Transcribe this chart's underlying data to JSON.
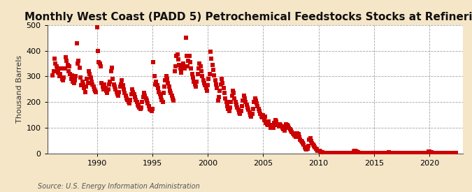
{
  "title": "Monthly West Coast (PADD 5) Petrochemical Feedstocks Stocks at Refineries",
  "ylabel": "Thousand Barrels",
  "source": "Source: U.S. Energy Information Administration",
  "background_color": "#f5e6c8",
  "plot_background_color": "#ffffff",
  "marker_color": "#cc0000",
  "marker": "s",
  "marker_size": 4,
  "xmin": 1985.5,
  "xmax": 2023.0,
  "ymin": 0,
  "ymax": 500,
  "yticks": [
    0,
    100,
    200,
    300,
    400,
    500
  ],
  "xticks": [
    1990,
    1995,
    2000,
    2005,
    2010,
    2015,
    2020
  ],
  "title_fontsize": 11,
  "label_fontsize": 8,
  "tick_fontsize": 8,
  "source_fontsize": 7,
  "data": [
    [
      1986.0,
      305
    ],
    [
      1986.083,
      320
    ],
    [
      1986.167,
      370
    ],
    [
      1986.25,
      350
    ],
    [
      1986.333,
      340
    ],
    [
      1986.417,
      325
    ],
    [
      1986.5,
      315
    ],
    [
      1986.583,
      300
    ],
    [
      1986.667,
      310
    ],
    [
      1986.75,
      330
    ],
    [
      1986.833,
      290
    ],
    [
      1986.917,
      285
    ],
    [
      1987.0,
      295
    ],
    [
      1987.083,
      330
    ],
    [
      1987.167,
      375
    ],
    [
      1987.25,
      360
    ],
    [
      1987.333,
      345
    ],
    [
      1987.417,
      320
    ],
    [
      1987.5,
      340
    ],
    [
      1987.583,
      310
    ],
    [
      1987.667,
      290
    ],
    [
      1987.75,
      305
    ],
    [
      1987.833,
      280
    ],
    [
      1987.917,
      275
    ],
    [
      1988.0,
      285
    ],
    [
      1988.083,
      300
    ],
    [
      1988.167,
      430
    ],
    [
      1988.25,
      350
    ],
    [
      1988.333,
      360
    ],
    [
      1988.417,
      335
    ],
    [
      1988.5,
      295
    ],
    [
      1988.583,
      265
    ],
    [
      1988.667,
      280
    ],
    [
      1988.75,
      270
    ],
    [
      1988.833,
      255
    ],
    [
      1988.917,
      240
    ],
    [
      1989.0,
      260
    ],
    [
      1989.083,
      290
    ],
    [
      1989.167,
      275
    ],
    [
      1989.25,
      320
    ],
    [
      1989.333,
      310
    ],
    [
      1989.417,
      295
    ],
    [
      1989.5,
      280
    ],
    [
      1989.583,
      270
    ],
    [
      1989.667,
      260
    ],
    [
      1989.75,
      250
    ],
    [
      1989.833,
      245
    ],
    [
      1989.917,
      240
    ],
    [
      1990.0,
      490
    ],
    [
      1990.083,
      400
    ],
    [
      1990.167,
      355
    ],
    [
      1990.25,
      350
    ],
    [
      1990.333,
      340
    ],
    [
      1990.417,
      275
    ],
    [
      1990.5,
      260
    ],
    [
      1990.583,
      250
    ],
    [
      1990.667,
      270
    ],
    [
      1990.75,
      255
    ],
    [
      1990.833,
      245
    ],
    [
      1990.917,
      235
    ],
    [
      1991.0,
      250
    ],
    [
      1991.083,
      270
    ],
    [
      1991.167,
      280
    ],
    [
      1991.25,
      320
    ],
    [
      1991.333,
      335
    ],
    [
      1991.417,
      290
    ],
    [
      1991.5,
      270
    ],
    [
      1991.583,
      260
    ],
    [
      1991.667,
      250
    ],
    [
      1991.75,
      240
    ],
    [
      1991.833,
      230
    ],
    [
      1991.917,
      225
    ],
    [
      1992.0,
      240
    ],
    [
      1992.083,
      260
    ],
    [
      1992.167,
      270
    ],
    [
      1992.25,
      285
    ],
    [
      1992.333,
      265
    ],
    [
      1992.417,
      250
    ],
    [
      1992.5,
      235
    ],
    [
      1992.583,
      225
    ],
    [
      1992.667,
      215
    ],
    [
      1992.75,
      210
    ],
    [
      1992.833,
      200
    ],
    [
      1992.917,
      195
    ],
    [
      1993.0,
      210
    ],
    [
      1993.083,
      230
    ],
    [
      1993.167,
      250
    ],
    [
      1993.25,
      240
    ],
    [
      1993.333,
      230
    ],
    [
      1993.417,
      220
    ],
    [
      1993.5,
      210
    ],
    [
      1993.583,
      200
    ],
    [
      1993.667,
      190
    ],
    [
      1993.75,
      185
    ],
    [
      1993.833,
      180
    ],
    [
      1993.917,
      175
    ],
    [
      1994.0,
      180
    ],
    [
      1994.083,
      200
    ],
    [
      1994.167,
      220
    ],
    [
      1994.25,
      235
    ],
    [
      1994.333,
      225
    ],
    [
      1994.417,
      215
    ],
    [
      1994.5,
      205
    ],
    [
      1994.583,
      195
    ],
    [
      1994.667,
      185
    ],
    [
      1994.75,
      175
    ],
    [
      1994.833,
      170
    ],
    [
      1994.917,
      165
    ],
    [
      1995.0,
      175
    ],
    [
      1995.083,
      355
    ],
    [
      1995.167,
      300
    ],
    [
      1995.25,
      270
    ],
    [
      1995.333,
      280
    ],
    [
      1995.417,
      265
    ],
    [
      1995.5,
      255
    ],
    [
      1995.583,
      240
    ],
    [
      1995.667,
      230
    ],
    [
      1995.75,
      220
    ],
    [
      1995.833,
      210
    ],
    [
      1995.917,
      200
    ],
    [
      1996.0,
      235
    ],
    [
      1996.083,
      260
    ],
    [
      1996.167,
      285
    ],
    [
      1996.25,
      300
    ],
    [
      1996.333,
      290
    ],
    [
      1996.417,
      275
    ],
    [
      1996.5,
      260
    ],
    [
      1996.583,
      245
    ],
    [
      1996.667,
      235
    ],
    [
      1996.75,
      225
    ],
    [
      1996.833,
      215
    ],
    [
      1996.917,
      205
    ],
    [
      1997.0,
      320
    ],
    [
      1997.083,
      340
    ],
    [
      1997.167,
      380
    ],
    [
      1997.25,
      385
    ],
    [
      1997.333,
      365
    ],
    [
      1997.417,
      345
    ],
    [
      1997.5,
      330
    ],
    [
      1997.583,
      315
    ],
    [
      1997.667,
      345
    ],
    [
      1997.75,
      350
    ],
    [
      1997.833,
      340
    ],
    [
      1997.917,
      330
    ],
    [
      1998.0,
      450
    ],
    [
      1998.083,
      380
    ],
    [
      1998.167,
      340
    ],
    [
      1998.25,
      360
    ],
    [
      1998.333,
      380
    ],
    [
      1998.417,
      355
    ],
    [
      1998.5,
      330
    ],
    [
      1998.583,
      310
    ],
    [
      1998.667,
      295
    ],
    [
      1998.75,
      280
    ],
    [
      1998.833,
      270
    ],
    [
      1998.917,
      260
    ],
    [
      1999.0,
      280
    ],
    [
      1999.083,
      310
    ],
    [
      1999.167,
      330
    ],
    [
      1999.25,
      350
    ],
    [
      1999.333,
      340
    ],
    [
      1999.417,
      320
    ],
    [
      1999.5,
      300
    ],
    [
      1999.583,
      285
    ],
    [
      1999.667,
      275
    ],
    [
      1999.75,
      265
    ],
    [
      1999.833,
      255
    ],
    [
      1999.917,
      245
    ],
    [
      2000.0,
      265
    ],
    [
      2000.083,
      290
    ],
    [
      2000.167,
      310
    ],
    [
      2000.25,
      395
    ],
    [
      2000.333,
      370
    ],
    [
      2000.417,
      345
    ],
    [
      2000.5,
      325
    ],
    [
      2000.583,
      305
    ],
    [
      2000.667,
      285
    ],
    [
      2000.75,
      270
    ],
    [
      2000.833,
      255
    ],
    [
      2000.917,
      205
    ],
    [
      2001.0,
      220
    ],
    [
      2001.083,
      245
    ],
    [
      2001.167,
      270
    ],
    [
      2001.25,
      290
    ],
    [
      2001.333,
      275
    ],
    [
      2001.417,
      255
    ],
    [
      2001.5,
      235
    ],
    [
      2001.583,
      215
    ],
    [
      2001.667,
      200
    ],
    [
      2001.75,
      185
    ],
    [
      2001.833,
      175
    ],
    [
      2001.917,
      165
    ],
    [
      2002.0,
      180
    ],
    [
      2002.083,
      200
    ],
    [
      2002.167,
      225
    ],
    [
      2002.25,
      245
    ],
    [
      2002.333,
      235
    ],
    [
      2002.417,
      215
    ],
    [
      2002.5,
      200
    ],
    [
      2002.583,
      190
    ],
    [
      2002.667,
      180
    ],
    [
      2002.75,
      170
    ],
    [
      2002.833,
      160
    ],
    [
      2002.917,
      155
    ],
    [
      2003.0,
      165
    ],
    [
      2003.083,
      185
    ],
    [
      2003.167,
      205
    ],
    [
      2003.25,
      225
    ],
    [
      2003.333,
      215
    ],
    [
      2003.417,
      200
    ],
    [
      2003.5,
      190
    ],
    [
      2003.583,
      180
    ],
    [
      2003.667,
      170
    ],
    [
      2003.75,
      160
    ],
    [
      2003.833,
      150
    ],
    [
      2003.917,
      145
    ],
    [
      2004.0,
      155
    ],
    [
      2004.083,
      175
    ],
    [
      2004.167,
      200
    ],
    [
      2004.25,
      215
    ],
    [
      2004.333,
      205
    ],
    [
      2004.417,
      195
    ],
    [
      2004.5,
      185
    ],
    [
      2004.583,
      175
    ],
    [
      2004.667,
      165
    ],
    [
      2004.75,
      155
    ],
    [
      2004.833,
      145
    ],
    [
      2004.917,
      140
    ],
    [
      2005.0,
      150
    ],
    [
      2005.083,
      130
    ],
    [
      2005.167,
      145
    ],
    [
      2005.25,
      120
    ],
    [
      2005.333,
      115
    ],
    [
      2005.417,
      110
    ],
    [
      2005.5,
      125
    ],
    [
      2005.583,
      110
    ],
    [
      2005.667,
      100
    ],
    [
      2005.75,
      108
    ],
    [
      2005.833,
      105
    ],
    [
      2005.917,
      100
    ],
    [
      2006.0,
      120
    ],
    [
      2006.083,
      130
    ],
    [
      2006.167,
      125
    ],
    [
      2006.25,
      115
    ],
    [
      2006.333,
      110
    ],
    [
      2006.417,
      105
    ],
    [
      2006.5,
      115
    ],
    [
      2006.583,
      110
    ],
    [
      2006.667,
      105
    ],
    [
      2006.75,
      100
    ],
    [
      2006.833,
      95
    ],
    [
      2006.917,
      90
    ],
    [
      2007.0,
      100
    ],
    [
      2007.083,
      115
    ],
    [
      2007.167,
      110
    ],
    [
      2007.25,
      105
    ],
    [
      2007.333,
      100
    ],
    [
      2007.417,
      95
    ],
    [
      2007.5,
      90
    ],
    [
      2007.583,
      85
    ],
    [
      2007.667,
      80
    ],
    [
      2007.75,
      75
    ],
    [
      2007.833,
      70
    ],
    [
      2007.917,
      65
    ],
    [
      2008.0,
      70
    ],
    [
      2008.083,
      80
    ],
    [
      2008.167,
      75
    ],
    [
      2008.25,
      65
    ],
    [
      2008.333,
      55
    ],
    [
      2008.417,
      50
    ],
    [
      2008.5,
      45
    ],
    [
      2008.583,
      40
    ],
    [
      2008.667,
      35
    ],
    [
      2008.75,
      25
    ],
    [
      2008.833,
      20
    ],
    [
      2008.917,
      15
    ],
    [
      2009.0,
      20
    ],
    [
      2009.083,
      30
    ],
    [
      2009.167,
      55
    ],
    [
      2009.25,
      60
    ],
    [
      2009.333,
      50
    ],
    [
      2009.417,
      40
    ],
    [
      2009.5,
      35
    ],
    [
      2009.583,
      30
    ],
    [
      2009.667,
      25
    ],
    [
      2009.75,
      20
    ],
    [
      2009.833,
      15
    ],
    [
      2009.917,
      10
    ],
    [
      2010.0,
      10
    ],
    [
      2010.083,
      12
    ],
    [
      2010.167,
      8
    ],
    [
      2010.25,
      6
    ],
    [
      2010.333,
      5
    ],
    [
      2010.417,
      4
    ],
    [
      2010.5,
      3
    ],
    [
      2010.583,
      3
    ],
    [
      2010.667,
      2
    ],
    [
      2010.75,
      2
    ],
    [
      2010.833,
      2
    ],
    [
      2010.917,
      2
    ],
    [
      2011.0,
      2
    ],
    [
      2011.083,
      2
    ],
    [
      2011.167,
      2
    ],
    [
      2011.25,
      2
    ],
    [
      2011.333,
      2
    ],
    [
      2011.417,
      2
    ],
    [
      2011.5,
      2
    ],
    [
      2011.583,
      2
    ],
    [
      2011.667,
      2
    ],
    [
      2011.75,
      2
    ],
    [
      2011.833,
      2
    ],
    [
      2011.917,
      2
    ],
    [
      2012.0,
      2
    ],
    [
      2012.083,
      2
    ],
    [
      2012.167,
      2
    ],
    [
      2012.25,
      2
    ],
    [
      2012.333,
      2
    ],
    [
      2012.417,
      2
    ],
    [
      2012.5,
      2
    ],
    [
      2012.583,
      2
    ],
    [
      2012.667,
      2
    ],
    [
      2012.75,
      2
    ],
    [
      2012.833,
      2
    ],
    [
      2012.917,
      2
    ],
    [
      2013.0,
      2
    ],
    [
      2013.083,
      2
    ],
    [
      2013.167,
      8
    ],
    [
      2013.25,
      12
    ],
    [
      2013.333,
      10
    ],
    [
      2013.417,
      8
    ],
    [
      2013.5,
      6
    ],
    [
      2013.583,
      5
    ],
    [
      2013.667,
      4
    ],
    [
      2013.75,
      3
    ],
    [
      2013.833,
      3
    ],
    [
      2013.917,
      2
    ],
    [
      2014.0,
      2
    ],
    [
      2014.083,
      2
    ],
    [
      2014.167,
      2
    ],
    [
      2014.25,
      2
    ],
    [
      2014.333,
      2
    ],
    [
      2014.417,
      2
    ],
    [
      2014.5,
      2
    ],
    [
      2014.583,
      2
    ],
    [
      2014.667,
      2
    ],
    [
      2014.75,
      2
    ],
    [
      2014.833,
      2
    ],
    [
      2014.917,
      2
    ],
    [
      2015.0,
      2
    ],
    [
      2015.083,
      2
    ],
    [
      2015.167,
      2
    ],
    [
      2015.25,
      2
    ],
    [
      2015.333,
      2
    ],
    [
      2015.417,
      2
    ],
    [
      2015.5,
      2
    ],
    [
      2015.583,
      2
    ],
    [
      2015.667,
      2
    ],
    [
      2015.75,
      2
    ],
    [
      2015.833,
      2
    ],
    [
      2015.917,
      2
    ],
    [
      2016.0,
      2
    ],
    [
      2016.083,
      2
    ],
    [
      2016.167,
      3
    ],
    [
      2016.25,
      4
    ],
    [
      2016.333,
      5
    ],
    [
      2016.417,
      3
    ],
    [
      2016.5,
      2
    ],
    [
      2016.583,
      2
    ],
    [
      2016.667,
      2
    ],
    [
      2016.75,
      2
    ],
    [
      2016.833,
      2
    ],
    [
      2016.917,
      2
    ],
    [
      2017.0,
      2
    ],
    [
      2017.083,
      2
    ],
    [
      2017.167,
      2
    ],
    [
      2017.25,
      2
    ],
    [
      2017.333,
      2
    ],
    [
      2017.417,
      2
    ],
    [
      2017.5,
      2
    ],
    [
      2017.583,
      2
    ],
    [
      2017.667,
      2
    ],
    [
      2017.75,
      2
    ],
    [
      2017.833,
      2
    ],
    [
      2017.917,
      2
    ],
    [
      2018.0,
      2
    ],
    [
      2018.083,
      2
    ],
    [
      2018.167,
      2
    ],
    [
      2018.25,
      2
    ],
    [
      2018.333,
      2
    ],
    [
      2018.417,
      2
    ],
    [
      2018.5,
      2
    ],
    [
      2018.583,
      2
    ],
    [
      2018.667,
      2
    ],
    [
      2018.75,
      2
    ],
    [
      2018.833,
      2
    ],
    [
      2018.917,
      2
    ],
    [
      2019.0,
      2
    ],
    [
      2019.083,
      2
    ],
    [
      2019.167,
      2
    ],
    [
      2019.25,
      2
    ],
    [
      2019.333,
      2
    ],
    [
      2019.417,
      2
    ],
    [
      2019.5,
      2
    ],
    [
      2019.583,
      2
    ],
    [
      2019.667,
      2
    ],
    [
      2019.75,
      2
    ],
    [
      2019.833,
      4
    ],
    [
      2019.917,
      7
    ],
    [
      2020.0,
      8
    ],
    [
      2020.083,
      6
    ],
    [
      2020.167,
      5
    ],
    [
      2020.25,
      4
    ],
    [
      2020.333,
      4
    ],
    [
      2020.417,
      3
    ],
    [
      2020.5,
      3
    ],
    [
      2020.583,
      3
    ],
    [
      2020.667,
      3
    ],
    [
      2020.75,
      3
    ],
    [
      2020.833,
      2
    ],
    [
      2020.917,
      2
    ],
    [
      2021.0,
      2
    ],
    [
      2021.083,
      2
    ],
    [
      2021.167,
      2
    ],
    [
      2021.25,
      2
    ],
    [
      2021.333,
      2
    ],
    [
      2021.417,
      2
    ],
    [
      2021.5,
      2
    ],
    [
      2021.583,
      2
    ],
    [
      2021.667,
      2
    ],
    [
      2021.75,
      2
    ],
    [
      2021.833,
      2
    ],
    [
      2021.917,
      2
    ],
    [
      2022.0,
      2
    ],
    [
      2022.083,
      2
    ],
    [
      2022.167,
      2
    ],
    [
      2022.25,
      2
    ],
    [
      2022.333,
      2
    ],
    [
      2022.417,
      2
    ]
  ]
}
